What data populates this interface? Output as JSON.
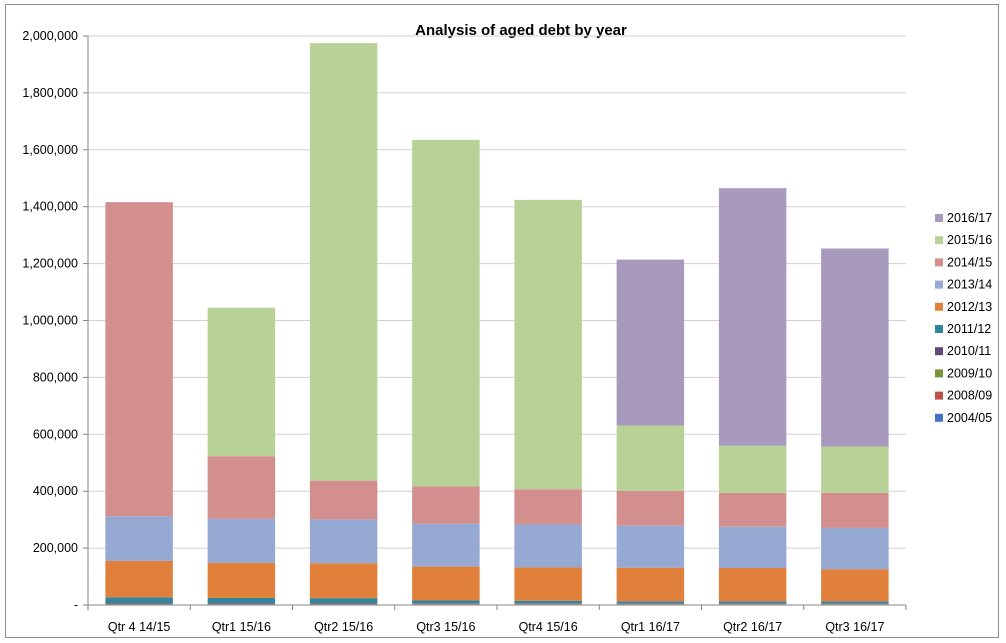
{
  "chart_data": {
    "type": "bar",
    "stacked": true,
    "title": "Analysis of aged  debt  by year",
    "xlabel": "",
    "ylabel": "",
    "ylim": [
      0,
      2000000
    ],
    "y_ticks": [
      0,
      200000,
      400000,
      600000,
      800000,
      1000000,
      1200000,
      1400000,
      1600000,
      1800000,
      2000000
    ],
    "y_tick_labels": [
      "-",
      "200,000",
      "400,000",
      "600,000",
      "800,000",
      "1,000,000",
      "1,200,000",
      "1,400,000",
      "1,600,000",
      "1,800,000",
      "2,000,000"
    ],
    "grid": true,
    "legend_position": "right",
    "categories": [
      "Qtr 4 14/15",
      "Qtr1 15/16",
      "Qtr2 15/16",
      "Qtr3 15/16",
      "Qtr4 15/16",
      "Qtr1 16/17",
      "Qtr2 16/17",
      "Qtr3 16/17"
    ],
    "series": [
      {
        "name": "2004/05",
        "color": "#4472c4",
        "values": [
          3000,
          3000,
          3000,
          2000,
          2000,
          2000,
          2000,
          2000
        ]
      },
      {
        "name": "2008/09",
        "color": "#c0504d",
        "values": [
          1000,
          1000,
          1000,
          1000,
          1000,
          1000,
          1000,
          1000
        ]
      },
      {
        "name": "2009/10",
        "color": "#77933c",
        "values": [
          1000,
          1000,
          1000,
          1000,
          1000,
          1000,
          1000,
          1000
        ]
      },
      {
        "name": "2010/11",
        "color": "#604a7b",
        "values": [
          2000,
          2000,
          2000,
          2000,
          2000,
          2000,
          2000,
          2000
        ]
      },
      {
        "name": "2011/12",
        "color": "#31859c",
        "values": [
          20000,
          18000,
          17000,
          10000,
          9000,
          7000,
          7000,
          7000
        ]
      },
      {
        "name": "2012/13",
        "color": "#e0803a",
        "values": [
          128000,
          123000,
          123000,
          119000,
          117000,
          118000,
          117000,
          113000
        ]
      },
      {
        "name": "2013/14",
        "color": "#95a9d3",
        "values": [
          157000,
          155000,
          154000,
          151000,
          151000,
          148000,
          145000,
          145000
        ]
      },
      {
        "name": "2014/15",
        "color": "#d28f8e",
        "values": [
          1104000,
          220000,
          136000,
          131000,
          124000,
          122000,
          119000,
          123000
        ]
      },
      {
        "name": "2015/16",
        "color": "#b8d197",
        "values": [
          0,
          522000,
          1538000,
          1218000,
          1017000,
          230000,
          166000,
          163000
        ]
      },
      {
        "name": "2016/17",
        "color": "#a89abd",
        "values": [
          0,
          0,
          0,
          0,
          0,
          583000,
          905000,
          696000
        ]
      }
    ]
  }
}
